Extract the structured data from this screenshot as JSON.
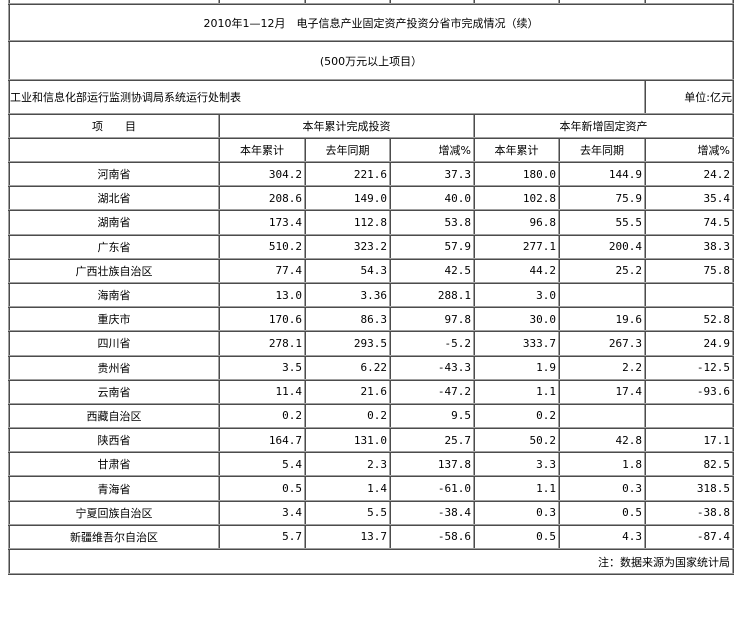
{
  "title": "2010年1—12月　电子信息产业固定资产投资分省市完成情况（续）",
  "subtitle": "(500万元以上项目）",
  "maker": "工业和信息化部运行监测协调局系统运行处制表",
  "unit": "单位:亿元",
  "header": {
    "item": "项　　目",
    "group1": "本年累计完成投资",
    "group2": "本年新增固定资产",
    "cols": [
      "本年累计",
      "去年同期",
      "增减%",
      "本年累计",
      "去年同期",
      "增减%"
    ]
  },
  "rows": [
    {
      "name": "河南省",
      "v": [
        "304.2",
        "221.6",
        "37.3",
        "180.0",
        "144.9",
        "24.2"
      ]
    },
    {
      "name": "湖北省",
      "v": [
        "208.6",
        "149.0",
        "40.0",
        "102.8",
        "75.9",
        "35.4"
      ]
    },
    {
      "name": "湖南省",
      "v": [
        "173.4",
        "112.8",
        "53.8",
        "96.8",
        "55.5",
        "74.5"
      ]
    },
    {
      "name": "广东省",
      "v": [
        "510.2",
        "323.2",
        "57.9",
        "277.1",
        "200.4",
        "38.3"
      ]
    },
    {
      "name": "广西壮族自治区",
      "v": [
        "77.4",
        "54.3",
        "42.5",
        "44.2",
        "25.2",
        "75.8"
      ]
    },
    {
      "name": "海南省",
      "v": [
        "13.0",
        "3.36",
        "288.1",
        "3.0",
        "",
        ""
      ]
    },
    {
      "name": "重庆市",
      "v": [
        "170.6",
        "86.3",
        "97.8",
        "30.0",
        "19.6",
        "52.8"
      ]
    },
    {
      "name": "四川省",
      "v": [
        "278.1",
        "293.5",
        "-5.2",
        "333.7",
        "267.3",
        "24.9"
      ]
    },
    {
      "name": "贵州省",
      "v": [
        "3.5",
        "6.22",
        "-43.3",
        "1.9",
        "2.2",
        "-12.5"
      ]
    },
    {
      "name": "云南省",
      "v": [
        "11.4",
        "21.6",
        "-47.2",
        "1.1",
        "17.4",
        "-93.6"
      ]
    },
    {
      "name": "西藏自治区",
      "v": [
        "0.2",
        "0.2",
        "9.5",
        "0.2",
        "",
        ""
      ]
    },
    {
      "name": "陕西省",
      "v": [
        "164.7",
        "131.0",
        "25.7",
        "50.2",
        "42.8",
        "17.1"
      ]
    },
    {
      "name": "甘肃省",
      "v": [
        "5.4",
        "2.3",
        "137.8",
        "3.3",
        "1.8",
        "82.5"
      ]
    },
    {
      "name": "青海省",
      "v": [
        "0.5",
        "1.4",
        "-61.0",
        "1.1",
        "0.3",
        "318.5"
      ]
    },
    {
      "name": "宁夏回族自治区",
      "v": [
        "3.4",
        "5.5",
        "-38.4",
        "0.3",
        "0.5",
        "-38.8"
      ]
    },
    {
      "name": "新疆维吾尔自治区",
      "v": [
        "5.7",
        "13.7",
        "-58.6",
        "0.5",
        "4.3",
        "-87.4"
      ]
    }
  ],
  "note": "注：数据来源为国家统计局"
}
